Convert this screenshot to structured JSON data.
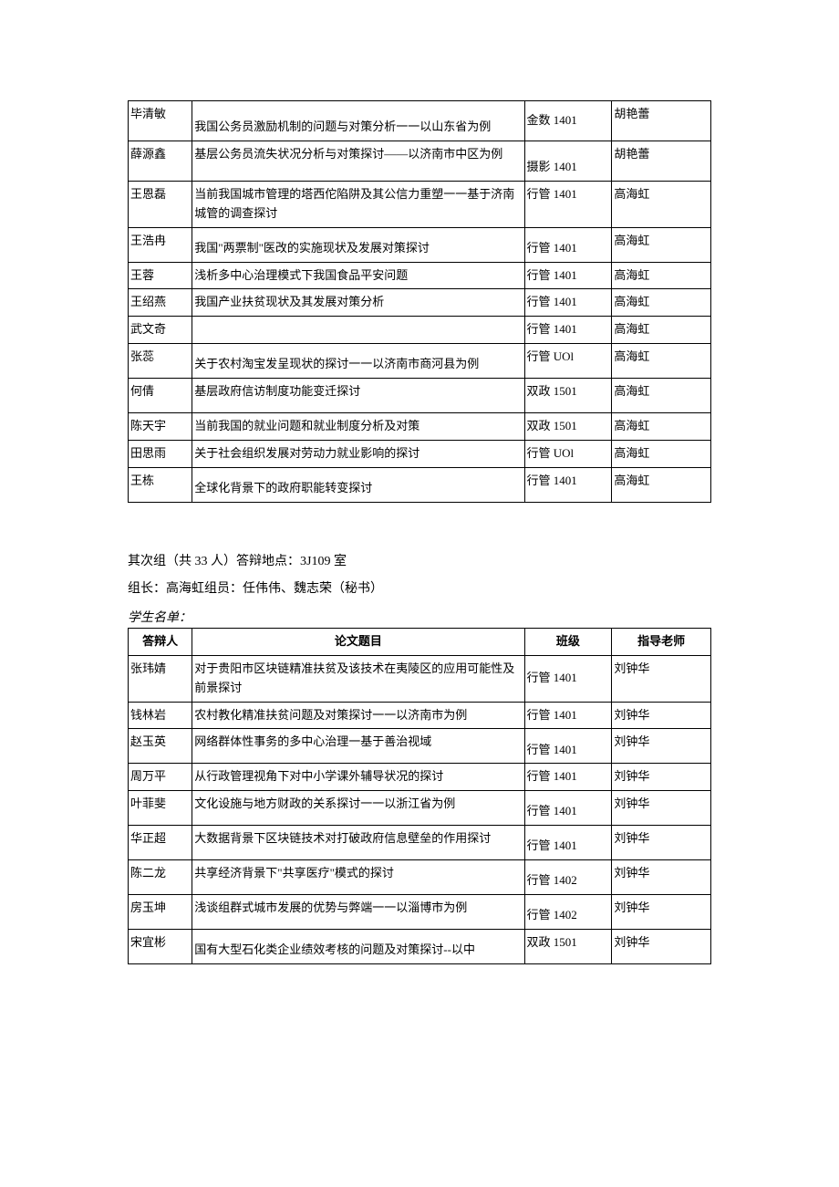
{
  "table1": {
    "columns": [
      "答辩人",
      "论文题目",
      "班级",
      "指导老师"
    ],
    "rows": [
      {
        "name": "毕清敏",
        "title": "我国公务员激励机制的问题与对策分析一一以山东省为例",
        "class": "金数 1401",
        "teacher": "胡艳蕾",
        "classAlign": "middle",
        "height": "h1"
      },
      {
        "name": "薛源鑫",
        "title": "基层公务员流失状况分析与对策探讨——以济南市中区为例",
        "class": "摄影 1401",
        "teacher": "胡艳蕾",
        "classAlign": "bottom",
        "titleAlign": "top",
        "height": "h1"
      },
      {
        "name": "王恩磊",
        "title": "当前我国城市管理的塔西佗陷阱及其公信力重塑一一基于济南城管的调查探讨",
        "class": "行管 1401",
        "teacher": "高海虹",
        "classAlign": "top",
        "titleAlign": "top",
        "height": "h2"
      },
      {
        "name": "王浩冉",
        "title": "我国\"两票制\"医改的实施现状及发展对策探讨",
        "class": "行管 1401",
        "teacher": "高海虹",
        "height": "h2"
      },
      {
        "name": "王蓉",
        "title": "浅析多中心治理模式下我国食品平安问题",
        "class": "行管 1401",
        "teacher": "高海虹"
      },
      {
        "name": "王绍燕",
        "title": "我国产业扶贫现状及其发展对策分析",
        "class": "行管 1401",
        "teacher": "高海虹"
      },
      {
        "name": "武文奇",
        "title": "",
        "class": "行管 1401",
        "teacher": "高海虹",
        "classAlign": "top"
      },
      {
        "name": "张蕊",
        "title": "关于农村淘宝发呈现状的探讨一一以济南市商河县为例",
        "class": "行管 UOl",
        "teacher": "高海虹",
        "classAlign": "top",
        "height": "h2"
      },
      {
        "name": "何倩",
        "title": "基层政府信访制度功能变迁探讨",
        "class": "双政 1501",
        "teacher": "高海虹",
        "titleAlign": "top",
        "classAlign": "top",
        "height": "h2"
      },
      {
        "name": "陈天宇",
        "title": "当前我国的就业问题和就业制度分析及对策",
        "class": "双政 1501",
        "teacher": "高海虹",
        "classAlign": "top"
      },
      {
        "name": "田思雨",
        "title": "关于社会组织发展对劳动力就业影响的探讨",
        "class": "行管 UOl",
        "teacher": "高海虹"
      },
      {
        "name": "王栋",
        "title": "全球化背景下的政府职能转变探讨",
        "class": "行管 1401",
        "teacher": "高海虹",
        "classAlign": "top",
        "height": "h2"
      }
    ]
  },
  "section": {
    "line1": "其次组（共 33 人）答辩地点：3J109 室",
    "line2": "组长：高海虹组员：任伟伟、魏志荣（秘书）",
    "line3": "学生名单："
  },
  "table2": {
    "columns": [
      "答辩人",
      "论文题目",
      "班级",
      "指导老师"
    ],
    "rows": [
      {
        "name": "张玮婧",
        "title": "对于贵阳市区块链精准扶贫及该技术在夷陵区的应用可能性及前景探讨",
        "class": "行管 1401",
        "teacher": "刘钟华",
        "titleAlign": "top",
        "classAlign": "middle",
        "height": "h2"
      },
      {
        "name": "钱林岩",
        "title": "农村教化精准扶贫问题及对策探讨一一以济南市为例",
        "class": "行管 1401",
        "teacher": "刘钟华",
        "titleAlign": "top"
      },
      {
        "name": "赵玉英",
        "title": "网络群体性事务的多中心治理一基于善治视域",
        "class": "行管 1401",
        "teacher": "刘钟华",
        "titleAlign": "top",
        "height": "h2"
      },
      {
        "name": "周万平",
        "title": "从行政管理视角下对中小学课外辅导状况的探讨",
        "class": "行管 1401",
        "teacher": "刘钟华",
        "titleAlign": "top"
      },
      {
        "name": "叶菲斐",
        "title": "文化设施与地方财政的关系探讨一一以浙江省为例",
        "class": "行管 1401",
        "teacher": "刘钟华",
        "titleAlign": "top",
        "height": "h2"
      },
      {
        "name": "华正超",
        "title": "大数据背景下区块链技术对打破政府信息壁垒的作用探讨",
        "class": "行管 1401",
        "teacher": "刘钟华",
        "titleAlign": "top",
        "height": "h2"
      },
      {
        "name": "陈二龙",
        "title": "共享经济背景下\"共享医疗\"模式的探讨",
        "class": "行管 1402",
        "teacher": "刘钟华",
        "titleAlign": "top",
        "height": "h2"
      },
      {
        "name": "房玉坤",
        "title": "浅谈组群式城市发展的优势与弊端一一以淄博市为例",
        "class": "行管 1402",
        "teacher": "刘钟华",
        "titleAlign": "top",
        "height": "h2"
      },
      {
        "name": "宋宜彬",
        "title": "国有大型石化类企业绩效考核的问题及对策探讨--以中",
        "class": "双政 1501",
        "teacher": "刘钟华",
        "classAlign": "top",
        "height": "h2"
      }
    ]
  }
}
